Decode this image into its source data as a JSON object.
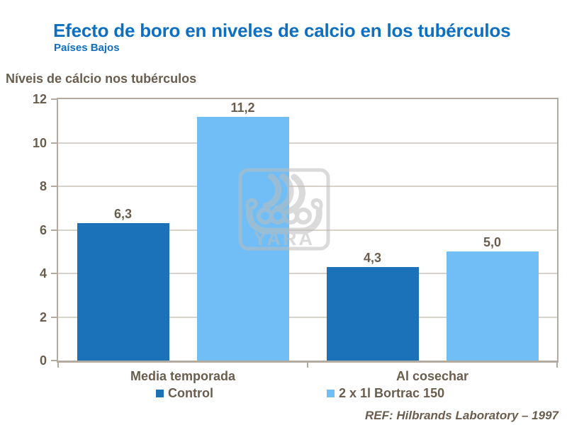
{
  "title": "Efecto de boro en niveles de calcio en los tubérculos",
  "subtitle": "Países Bajos",
  "axis_title": "Níveis de cálcio nos tubérculos",
  "ref_note": "REF: Hilbrands Laboratory – 1997",
  "watermark_text": "YARA",
  "colors": {
    "title": "#0D6FC2",
    "text": "#6B5D4E",
    "axis": "#B3AB9F",
    "grid": "#D8D3CA",
    "series_control": "#1B72B8",
    "series_bortrac": "#70BEF5",
    "background": "#FFFFFF",
    "watermark": "#BDBDBD"
  },
  "chart_data": {
    "type": "bar",
    "title": "Efecto de boro en niveles de calcio en los tubérculos",
    "subtitle": "Países Bajos",
    "categories": [
      "Media temporada",
      "Al cosechar"
    ],
    "series": [
      {
        "name": "Control",
        "color": "#1B72B8",
        "values": [
          6.3,
          4.3
        ],
        "labels": [
          "6,3",
          "4,3"
        ]
      },
      {
        "name": "2 x 1l Bortrac 150",
        "color": "#70BEF5",
        "values": [
          11.2,
          5.0
        ],
        "labels": [
          "11,2",
          "5,0"
        ]
      }
    ],
    "xlabel": "",
    "ylabel": "Níveis de cálcio nos tubérculos",
    "ylim": [
      0,
      12
    ],
    "yticks": [
      0,
      2,
      4,
      6,
      8,
      10,
      12
    ],
    "grid": true,
    "legend_position": "bottom"
  }
}
